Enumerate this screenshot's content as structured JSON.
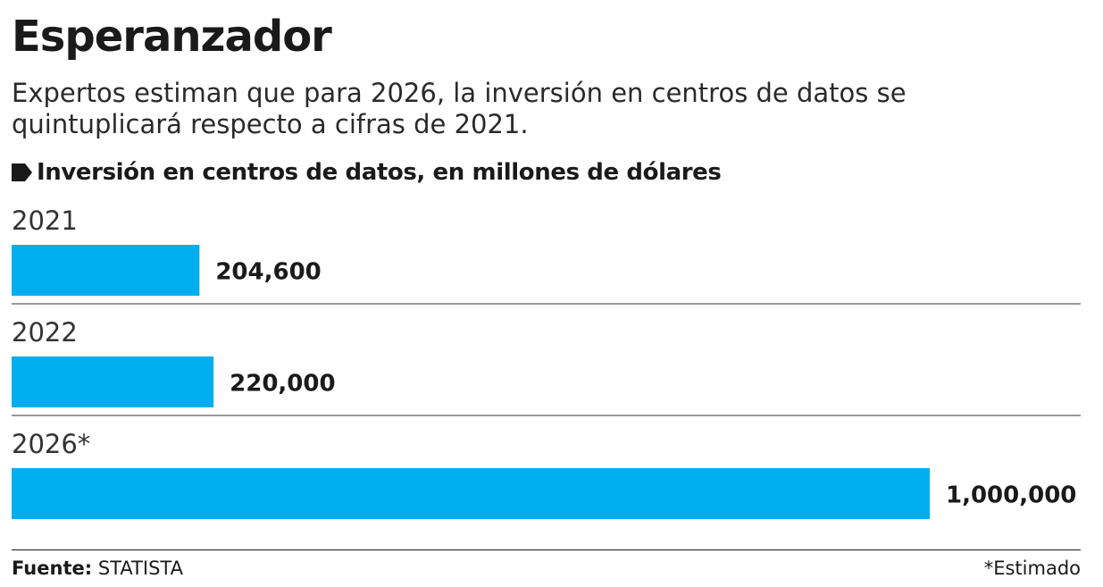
{
  "title": "Esperanzador",
  "subtitle": "Expertos estiman que para 2026, la inversión en centros de datos se quintuplicará respecto a cifras de 2021.",
  "unit_label": "Inversión en centros de datos, en millones de dólares",
  "unit_icon": "tag-icon",
  "source": {
    "label": "Fuente:",
    "value": "STATISTA"
  },
  "note": "*Estimado",
  "colors": {
    "bar": "#00aeef",
    "text": "#1a1a1a",
    "rule": "#777777"
  },
  "chart_data": {
    "type": "bar",
    "orientation": "horizontal",
    "categories": [
      "2021",
      "2022",
      "2026*"
    ],
    "values": [
      204600,
      220000,
      1000000
    ],
    "value_labels": [
      "204,600",
      "220,000",
      "1,000,000"
    ],
    "xlim": [
      0,
      1000000
    ],
    "grid": false,
    "legend": "none"
  }
}
